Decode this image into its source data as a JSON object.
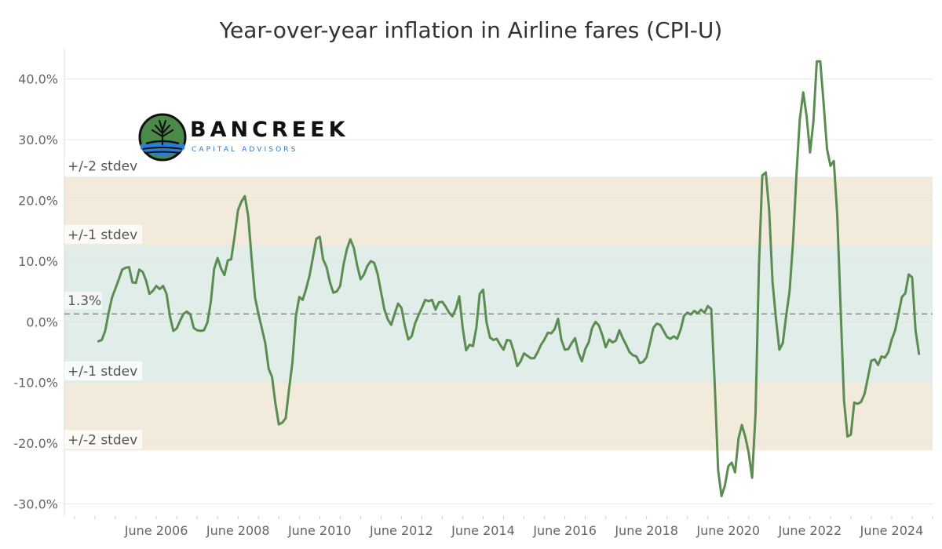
{
  "chart_data": {
    "type": "line",
    "title": "Year-over-year inflation in Airline fares (CPI-U)",
    "xlabel": "",
    "ylabel": "",
    "ylim": [
      -32,
      45
    ],
    "xlim": [
      "2004-03",
      "2025-06"
    ],
    "y_ticks": [
      {
        "value": 40,
        "label": "40.0%"
      },
      {
        "value": 30,
        "label": "30.0%"
      },
      {
        "value": 20,
        "label": "20.0%"
      },
      {
        "value": 10,
        "label": "10.0%"
      },
      {
        "value": 0,
        "label": "0.0%"
      },
      {
        "value": -10,
        "label": "-10.0%"
      },
      {
        "value": -20,
        "label": "-20.0%"
      },
      {
        "value": -30,
        "label": "-30.0%"
      }
    ],
    "x_ticks": [
      {
        "value": "2006-06",
        "label": "June 2006"
      },
      {
        "value": "2008-06",
        "label": "June 2008"
      },
      {
        "value": "2010-06",
        "label": "June 2010"
      },
      {
        "value": "2012-06",
        "label": "June 2012"
      },
      {
        "value": "2014-06",
        "label": "June 2014"
      },
      {
        "value": "2016-06",
        "label": "June 2016"
      },
      {
        "value": "2018-06",
        "label": "June 2018"
      },
      {
        "value": "2020-06",
        "label": "June 2020"
      },
      {
        "value": "2022-06",
        "label": "June 2022"
      },
      {
        "value": "2024-06",
        "label": "June 2024"
      }
    ],
    "mean": {
      "value": 1.3,
      "label": "1.3%"
    },
    "bands": [
      {
        "low": -21.2,
        "high": 23.9,
        "label_top": "+/-2 stdev",
        "label_bottom": "+/-2 stdev",
        "color": "#f2eadb"
      },
      {
        "low": -9.9,
        "high": 12.6,
        "label_top": "+/-1 stdev",
        "label_bottom": "+/-1 stdev",
        "color": "#e0ede8"
      }
    ],
    "grid": true,
    "series": [
      {
        "color": "#5b8c51",
        "points": [
          [
            "2005-01",
            -3.2
          ],
          [
            "2005-02",
            -3.0
          ],
          [
            "2005-03",
            -1.5
          ],
          [
            "2005-04",
            1.5
          ],
          [
            "2005-05",
            4.0
          ],
          [
            "2005-06",
            5.5
          ],
          [
            "2005-07",
            7.0
          ],
          [
            "2005-08",
            8.6
          ],
          [
            "2005-09",
            8.9
          ],
          [
            "2005-10",
            9.0
          ],
          [
            "2005-11",
            6.5
          ],
          [
            "2005-12",
            6.4
          ],
          [
            "2006-01",
            8.6
          ],
          [
            "2006-02",
            8.2
          ],
          [
            "2006-03",
            6.8
          ],
          [
            "2006-04",
            4.6
          ],
          [
            "2006-05",
            5.1
          ],
          [
            "2006-06",
            5.9
          ],
          [
            "2006-07",
            5.4
          ],
          [
            "2006-08",
            5.9
          ],
          [
            "2006-09",
            4.6
          ],
          [
            "2006-10",
            0.9
          ],
          [
            "2006-11",
            -1.5
          ],
          [
            "2006-12",
            -1.1
          ],
          [
            "2007-01",
            0.2
          ],
          [
            "2007-02",
            1.3
          ],
          [
            "2007-03",
            1.7
          ],
          [
            "2007-04",
            1.2
          ],
          [
            "2007-05",
            -1.0
          ],
          [
            "2007-06",
            -1.4
          ],
          [
            "2007-07",
            -1.5
          ],
          [
            "2007-08",
            -1.4
          ],
          [
            "2007-09",
            -0.1
          ],
          [
            "2007-10",
            3.2
          ],
          [
            "2007-11",
            8.7
          ],
          [
            "2007-12",
            10.5
          ],
          [
            "2008-01",
            8.8
          ],
          [
            "2008-02",
            7.7
          ],
          [
            "2008-03",
            10.1
          ],
          [
            "2008-04",
            10.3
          ],
          [
            "2008-05",
            14.1
          ],
          [
            "2008-06",
            18.4
          ],
          [
            "2008-07",
            19.8
          ],
          [
            "2008-08",
            20.7
          ],
          [
            "2008-09",
            17.4
          ],
          [
            "2008-10",
            10.5
          ],
          [
            "2008-11",
            4.0
          ],
          [
            "2008-12",
            1.3
          ],
          [
            "2009-01",
            -1.1
          ],
          [
            "2009-02",
            -3.5
          ],
          [
            "2009-03",
            -7.7
          ],
          [
            "2009-04",
            -9.1
          ],
          [
            "2009-05",
            -13.5
          ],
          [
            "2009-06",
            -16.9
          ],
          [
            "2009-07",
            -16.6
          ],
          [
            "2009-08",
            -15.9
          ],
          [
            "2009-09",
            -11.0
          ],
          [
            "2009-10",
            -6.6
          ],
          [
            "2009-11",
            0.9
          ],
          [
            "2009-12",
            4.1
          ],
          [
            "2010-01",
            3.6
          ],
          [
            "2010-02",
            5.4
          ],
          [
            "2010-03",
            7.6
          ],
          [
            "2010-04",
            10.6
          ],
          [
            "2010-05",
            13.7
          ],
          [
            "2010-06",
            14.0
          ],
          [
            "2010-07",
            10.3
          ],
          [
            "2010-08",
            9.0
          ],
          [
            "2010-09",
            6.5
          ],
          [
            "2010-10",
            4.8
          ],
          [
            "2010-11",
            5.0
          ],
          [
            "2010-12",
            5.9
          ],
          [
            "2011-01",
            9.5
          ],
          [
            "2011-02",
            12.0
          ],
          [
            "2011-03",
            13.6
          ],
          [
            "2011-04",
            12.2
          ],
          [
            "2011-05",
            9.3
          ],
          [
            "2011-06",
            7.0
          ],
          [
            "2011-07",
            7.8
          ],
          [
            "2011-08",
            9.2
          ],
          [
            "2011-09",
            10.0
          ],
          [
            "2011-10",
            9.7
          ],
          [
            "2011-11",
            7.9
          ],
          [
            "2011-12",
            4.9
          ],
          [
            "2012-01",
            2.0
          ],
          [
            "2012-02",
            0.4
          ],
          [
            "2012-03",
            -0.5
          ],
          [
            "2012-04",
            1.3
          ],
          [
            "2012-05",
            3.0
          ],
          [
            "2012-06",
            2.3
          ],
          [
            "2012-07",
            -0.6
          ],
          [
            "2012-08",
            -2.9
          ],
          [
            "2012-09",
            -2.4
          ],
          [
            "2012-10",
            -0.3
          ],
          [
            "2012-11",
            1.1
          ],
          [
            "2012-12",
            2.3
          ],
          [
            "2013-01",
            3.6
          ],
          [
            "2013-02",
            3.4
          ],
          [
            "2013-03",
            3.6
          ],
          [
            "2013-04",
            2.0
          ],
          [
            "2013-05",
            3.2
          ],
          [
            "2013-06",
            3.3
          ],
          [
            "2013-07",
            2.5
          ],
          [
            "2013-08",
            1.5
          ],
          [
            "2013-09",
            0.9
          ],
          [
            "2013-10",
            2.2
          ],
          [
            "2013-11",
            4.2
          ],
          [
            "2013-12",
            -1.1
          ],
          [
            "2014-01",
            -4.7
          ],
          [
            "2014-02",
            -3.8
          ],
          [
            "2014-03",
            -4.0
          ],
          [
            "2014-04",
            -1.0
          ],
          [
            "2014-05",
            4.6
          ],
          [
            "2014-06",
            5.3
          ],
          [
            "2014-07",
            -0.1
          ],
          [
            "2014-08",
            -2.6
          ],
          [
            "2014-09",
            -3.0
          ],
          [
            "2014-10",
            -2.8
          ],
          [
            "2014-11",
            -3.8
          ],
          [
            "2014-12",
            -4.6
          ],
          [
            "2015-01",
            -3.0
          ],
          [
            "2015-02",
            -3.1
          ],
          [
            "2015-03",
            -4.9
          ],
          [
            "2015-04",
            -7.3
          ],
          [
            "2015-05",
            -6.5
          ],
          [
            "2015-06",
            -5.2
          ],
          [
            "2015-07",
            -5.6
          ],
          [
            "2015-08",
            -6.0
          ],
          [
            "2015-09",
            -6.0
          ],
          [
            "2015-10",
            -5.0
          ],
          [
            "2015-11",
            -3.8
          ],
          [
            "2015-12",
            -2.9
          ],
          [
            "2016-01",
            -1.8
          ],
          [
            "2016-02",
            -1.9
          ],
          [
            "2016-03",
            -1.2
          ],
          [
            "2016-04",
            0.5
          ],
          [
            "2016-05",
            -3.0
          ],
          [
            "2016-06",
            -4.6
          ],
          [
            "2016-07",
            -4.5
          ],
          [
            "2016-08",
            -3.5
          ],
          [
            "2016-09",
            -2.7
          ],
          [
            "2016-10",
            -5.1
          ],
          [
            "2016-11",
            -6.5
          ],
          [
            "2016-12",
            -4.5
          ],
          [
            "2017-01",
            -3.4
          ],
          [
            "2017-02",
            -1.0
          ],
          [
            "2017-03",
            0.0
          ],
          [
            "2017-04",
            -0.6
          ],
          [
            "2017-05",
            -2.2
          ],
          [
            "2017-06",
            -4.2
          ],
          [
            "2017-07",
            -2.9
          ],
          [
            "2017-08",
            -3.4
          ],
          [
            "2017-09",
            -3.1
          ],
          [
            "2017-10",
            -1.4
          ],
          [
            "2017-11",
            -2.7
          ],
          [
            "2017-12",
            -3.8
          ],
          [
            "2018-01",
            -5.0
          ],
          [
            "2018-02",
            -5.5
          ],
          [
            "2018-03",
            -5.7
          ],
          [
            "2018-04",
            -6.8
          ],
          [
            "2018-05",
            -6.6
          ],
          [
            "2018-06",
            -5.8
          ],
          [
            "2018-07",
            -3.5
          ],
          [
            "2018-08",
            -1.0
          ],
          [
            "2018-09",
            -0.3
          ],
          [
            "2018-10",
            -0.5
          ],
          [
            "2018-11",
            -1.5
          ],
          [
            "2018-12",
            -2.5
          ],
          [
            "2019-01",
            -2.8
          ],
          [
            "2019-02",
            -2.4
          ],
          [
            "2019-03",
            -2.8
          ],
          [
            "2019-04",
            -1.3
          ],
          [
            "2019-05",
            1.0
          ],
          [
            "2019-06",
            1.5
          ],
          [
            "2019-07",
            1.2
          ],
          [
            "2019-08",
            1.8
          ],
          [
            "2019-09",
            1.4
          ],
          [
            "2019-10",
            2.0
          ],
          [
            "2019-11",
            1.5
          ],
          [
            "2019-12",
            2.6
          ],
          [
            "2020-01",
            2.1
          ],
          [
            "2020-02",
            -10.0
          ],
          [
            "2020-03",
            -24.4
          ],
          [
            "2020-04",
            -28.7
          ],
          [
            "2020-05",
            -27.0
          ],
          [
            "2020-06",
            -23.8
          ],
          [
            "2020-07",
            -23.2
          ],
          [
            "2020-08",
            -24.8
          ],
          [
            "2020-09",
            -19.2
          ],
          [
            "2020-10",
            -17.0
          ],
          [
            "2020-11",
            -19.0
          ],
          [
            "2020-12",
            -21.6
          ],
          [
            "2021-01",
            -25.7
          ],
          [
            "2021-02",
            -15.0
          ],
          [
            "2021-03",
            9.2
          ],
          [
            "2021-04",
            24.1
          ],
          [
            "2021-05",
            24.6
          ],
          [
            "2021-06",
            18.5
          ],
          [
            "2021-07",
            6.6
          ],
          [
            "2021-08",
            0.5
          ],
          [
            "2021-09",
            -4.6
          ],
          [
            "2021-10",
            -3.5
          ],
          [
            "2021-11",
            1.0
          ],
          [
            "2021-12",
            5.0
          ],
          [
            "2022-01",
            13.0
          ],
          [
            "2022-02",
            24.0
          ],
          [
            "2022-03",
            33.3
          ],
          [
            "2022-04",
            37.8
          ],
          [
            "2022-05",
            33.9
          ],
          [
            "2022-06",
            27.9
          ],
          [
            "2022-07",
            33.0
          ],
          [
            "2022-08",
            42.9
          ],
          [
            "2022-09",
            42.9
          ],
          [
            "2022-10",
            36.0
          ],
          [
            "2022-11",
            28.5
          ],
          [
            "2022-12",
            25.7
          ],
          [
            "2023-01",
            26.5
          ],
          [
            "2023-02",
            17.5
          ],
          [
            "2023-03",
            2.0
          ],
          [
            "2023-04",
            -13.0
          ],
          [
            "2023-05",
            -18.9
          ],
          [
            "2023-06",
            -18.6
          ],
          [
            "2023-07",
            -13.3
          ],
          [
            "2023-08",
            -13.5
          ],
          [
            "2023-09",
            -13.2
          ],
          [
            "2023-10",
            -11.9
          ],
          [
            "2023-11",
            -9.2
          ],
          [
            "2023-12",
            -6.4
          ],
          [
            "2024-01",
            -6.2
          ],
          [
            "2024-02",
            -7.1
          ],
          [
            "2024-03",
            -5.7
          ],
          [
            "2024-04",
            -5.9
          ],
          [
            "2024-05",
            -5.0
          ],
          [
            "2024-06",
            -2.9
          ],
          [
            "2024-07",
            -1.4
          ],
          [
            "2024-08",
            1.3
          ],
          [
            "2024-09",
            4.1
          ],
          [
            "2024-10",
            4.7
          ],
          [
            "2024-11",
            7.8
          ],
          [
            "2024-12",
            7.3
          ],
          [
            "2025-01",
            -1.4
          ],
          [
            "2025-02",
            -5.3
          ]
        ]
      }
    ]
  },
  "logo": {
    "name": "BANCREEK",
    "subtitle": "CAPITAL ADVISORS"
  }
}
